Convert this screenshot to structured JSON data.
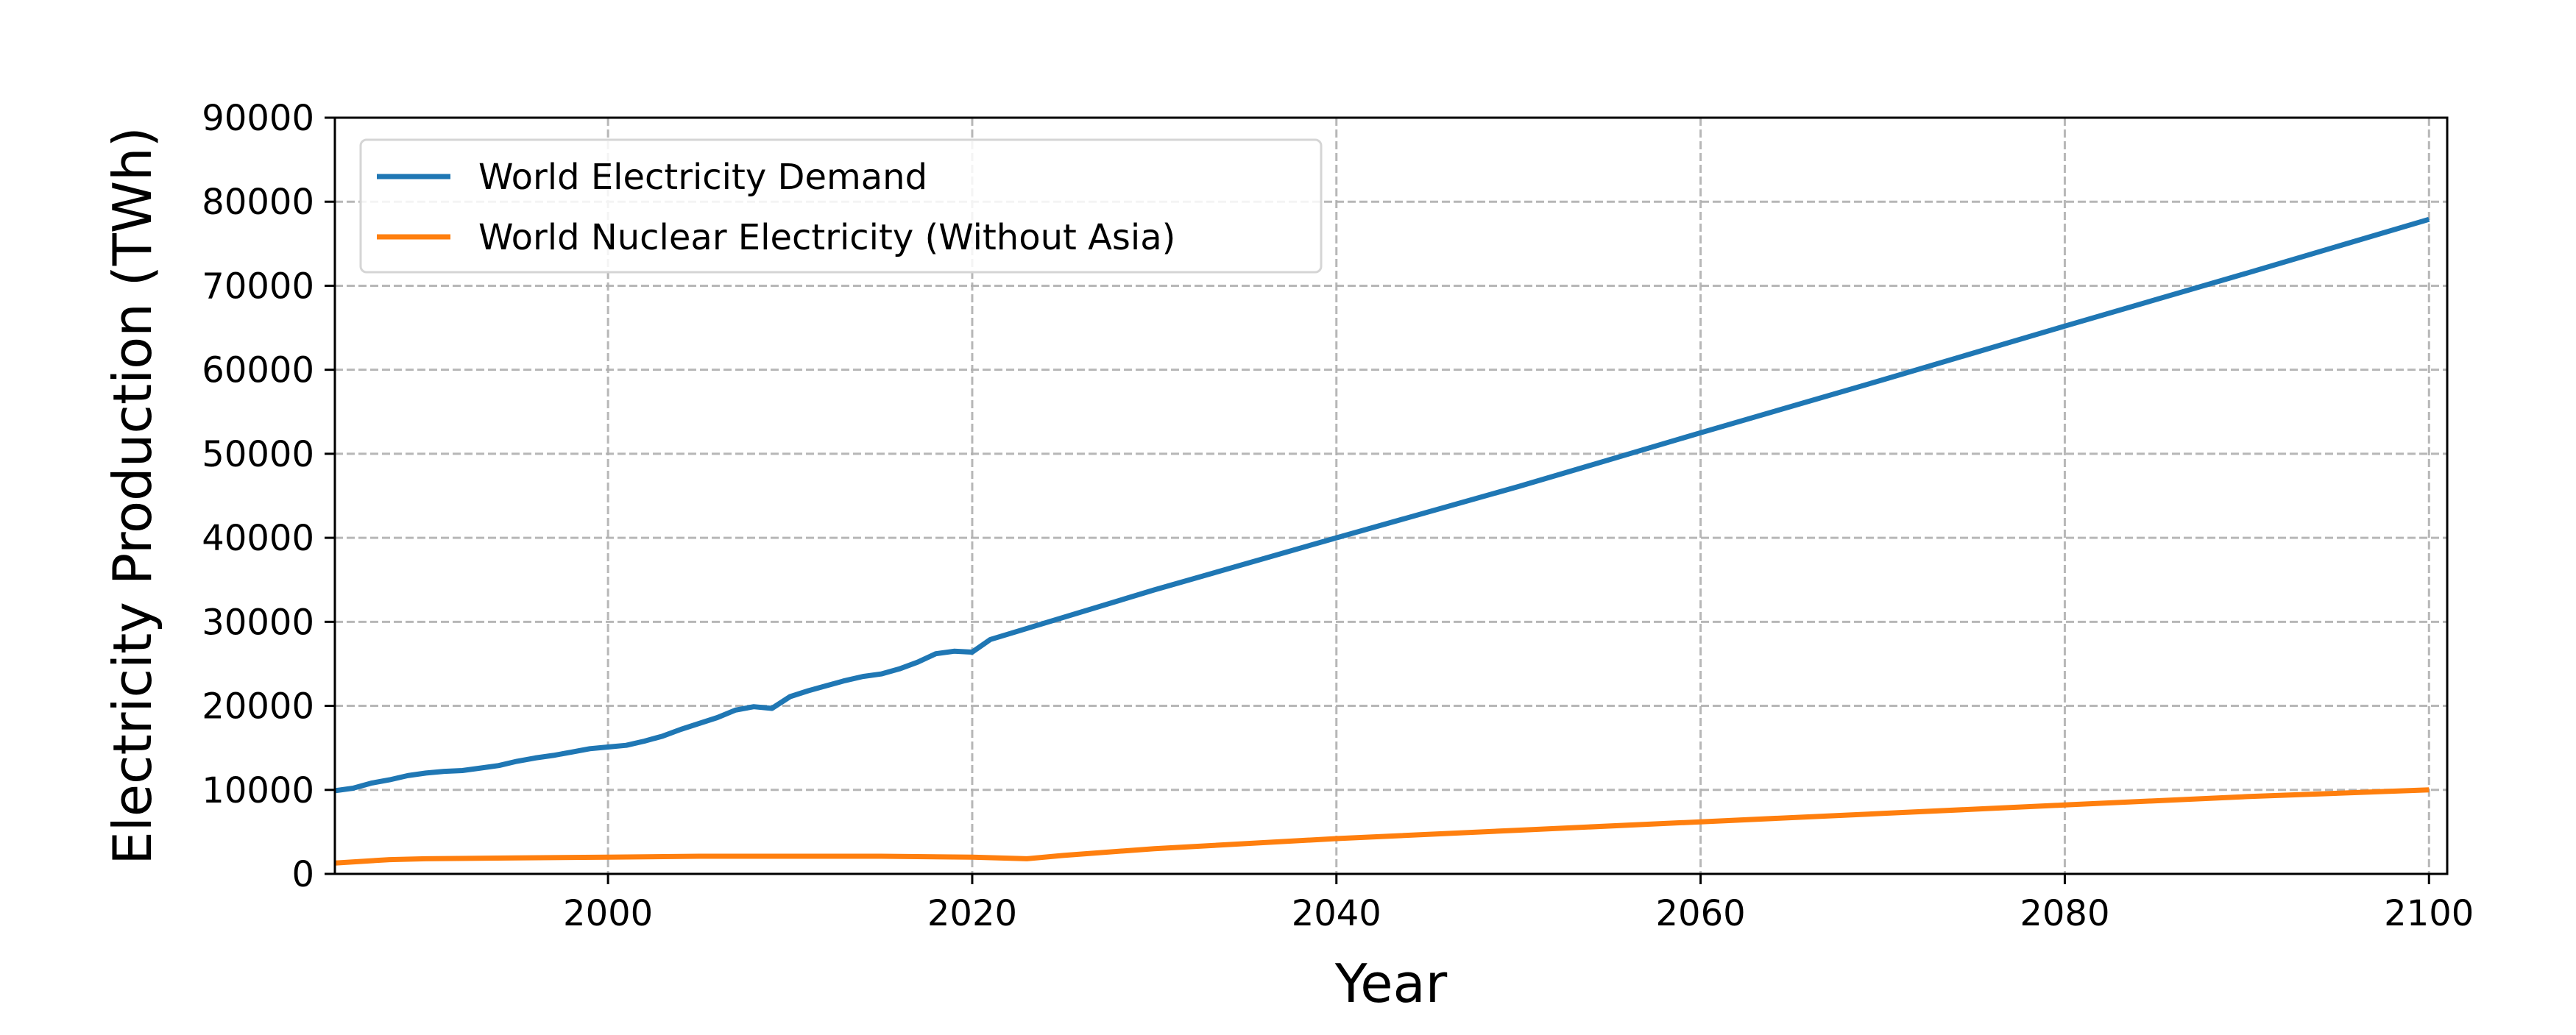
{
  "chart_data": {
    "type": "line",
    "title": "",
    "xlabel": "Year",
    "ylabel": "Electricity Production (TWh)",
    "xlim": [
      1985,
      2101
    ],
    "ylim": [
      0,
      90000
    ],
    "xticks": [
      2000,
      2020,
      2040,
      2060,
      2080,
      2100
    ],
    "yticks": [
      0,
      10000,
      20000,
      30000,
      40000,
      50000,
      60000,
      70000,
      80000,
      90000
    ],
    "grid": true,
    "legend_position": "upper-left",
    "series": [
      {
        "name": "World Electricity Demand",
        "color": "#1f77b4",
        "x": [
          1985,
          1986,
          1987,
          1988,
          1989,
          1990,
          1991,
          1992,
          1993,
          1994,
          1995,
          1996,
          1997,
          1998,
          1999,
          2000,
          2001,
          2002,
          2003,
          2004,
          2005,
          2006,
          2007,
          2008,
          2009,
          2010,
          2011,
          2012,
          2013,
          2014,
          2015,
          2016,
          2017,
          2018,
          2019,
          2020,
          2021,
          2030,
          2040,
          2050,
          2060,
          2070,
          2080,
          2090,
          2100
        ],
        "y": [
          9900,
          10200,
          10800,
          11200,
          11700,
          12000,
          12200,
          12300,
          12600,
          12900,
          13400,
          13800,
          14100,
          14500,
          14900,
          15100,
          15300,
          15800,
          16400,
          17200,
          17900,
          18600,
          19500,
          19900,
          19700,
          21100,
          21800,
          22400,
          23000,
          23500,
          23800,
          24400,
          25200,
          26200,
          26500,
          26400,
          27900,
          33800,
          40000,
          46100,
          52500,
          58800,
          65200,
          71500,
          77900
        ]
      },
      {
        "name": "World Nuclear Electricity (Without Asia)",
        "color": "#ff7f0e",
        "x": [
          1985,
          1988,
          1990,
          1995,
          2000,
          2005,
          2010,
          2015,
          2020,
          2023,
          2025,
          2030,
          2040,
          2050,
          2060,
          2070,
          2080,
          2090,
          2100
        ],
        "y": [
          1300,
          1700,
          1800,
          1900,
          2000,
          2100,
          2100,
          2100,
          2000,
          1800,
          2200,
          3000,
          4200,
          5200,
          6200,
          7200,
          8200,
          9200,
          10000
        ]
      }
    ]
  }
}
